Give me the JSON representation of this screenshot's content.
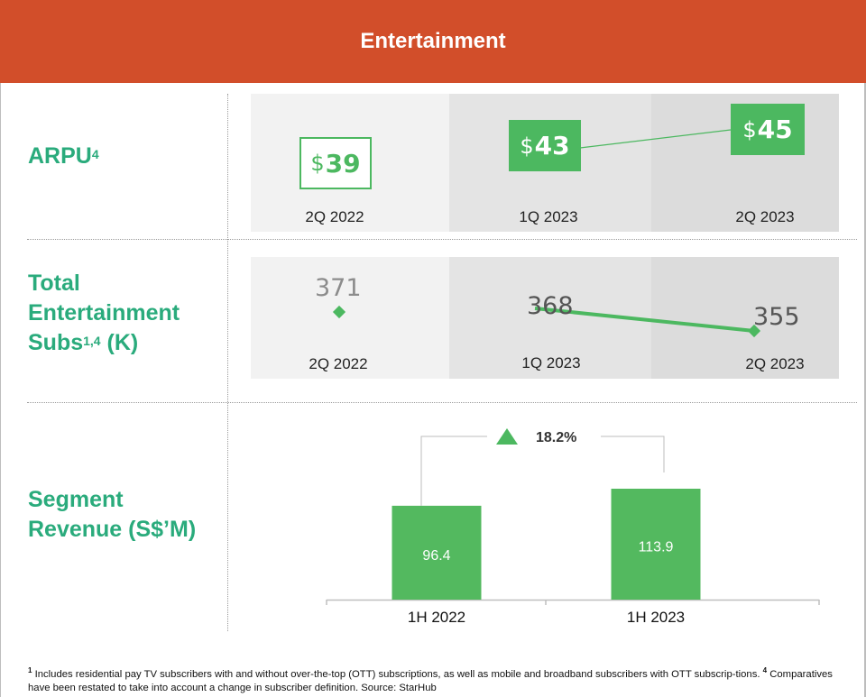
{
  "header": {
    "title": "Entertainment"
  },
  "rows": {
    "arpu": {
      "label": "ARPU",
      "label_sup": "4"
    },
    "subs": {
      "label_line1": "Total",
      "label_line2": "Entertainment",
      "label_line3": "Subs",
      "label_sup": "1,4",
      "label_suffix": " (K)"
    },
    "revenue": {
      "label_line1": "Segment",
      "label_line2": "Revenue (S$’M)"
    }
  },
  "chart_data": [
    {
      "type": "line",
      "title": "ARPU",
      "categories": [
        "2Q 2022",
        "1Q 2023",
        "2Q 2023"
      ],
      "values": [
        39,
        43,
        45
      ],
      "value_labels": [
        {
          "currency": "$",
          "amount": "39"
        },
        {
          "currency": "$",
          "amount": "43"
        },
        {
          "currency": "$",
          "amount": "45"
        }
      ],
      "unit": "$",
      "colors": {
        "primary": "#4cb860"
      }
    },
    {
      "type": "line",
      "title": "Total Entertainment Subs (K)",
      "categories": [
        "2Q 2022",
        "1Q 2023",
        "2Q 2023"
      ],
      "values": [
        371,
        368,
        355
      ],
      "colors": {
        "primary": "#4cb860",
        "text_muted": "#8c8c8c",
        "text_dark": "#555555"
      }
    },
    {
      "type": "bar",
      "title": "Segment Revenue (S$’M)",
      "categories": [
        "1H 2022",
        "1H 2023"
      ],
      "values": [
        96.4,
        113.9
      ],
      "value_labels": [
        "96.4",
        "113.9"
      ],
      "growth_label": "18.2%",
      "ylim": [
        0,
        113.9
      ],
      "colors": {
        "bar": "#53b95f",
        "bar_text": "#ffffff",
        "arrow": "#4cb860",
        "connector": "#bdbdbd"
      }
    }
  ],
  "footnote": {
    "sup1": "1",
    "text1": " Includes residential pay TV subscribers with and without over-the-top (OTT) subscriptions, as well as mobile and broadband subscribers with OTT subscrip-tions. ",
    "sup4": "4",
    "text4": " Comparatives have been restated to take into account a change in subscriber definition. Source: StarHub"
  }
}
